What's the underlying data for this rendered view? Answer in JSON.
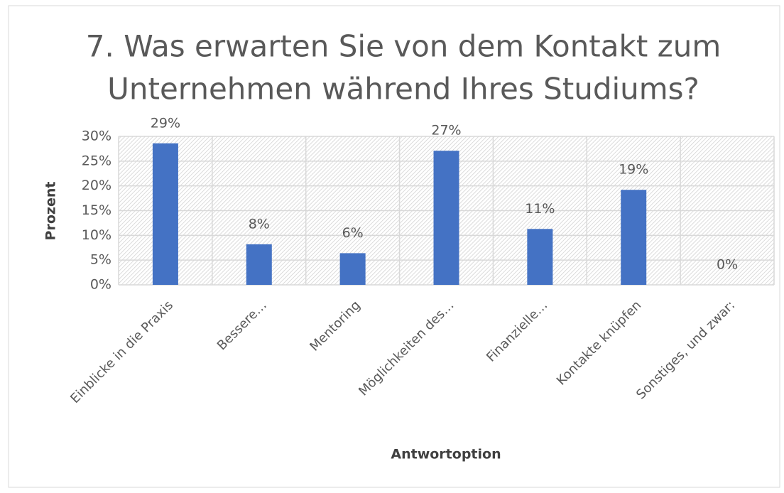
{
  "chart_data": {
    "type": "bar",
    "title": [
      "7. Was erwarten Sie von dem Kontakt zum",
      "Unternehmen während Ihres Studiums?"
    ],
    "x_label": "Antwortoption",
    "y_label": "Prozent",
    "categories": [
      "Einblicke in die Praxis",
      "Bessere…",
      "Mentoring",
      "Möglichkeiten des…",
      "Finanzielle…",
      "Kontakte knüpfen",
      "Sonstiges, und zwar:"
    ],
    "values": [
      28.6,
      8.2,
      6.4,
      27.1,
      11.3,
      19.2,
      0
    ],
    "value_labels": [
      "29%",
      "8%",
      "6%",
      "27%",
      "11%",
      "19%",
      "0%"
    ],
    "color": "#4472c4",
    "ylim": [
      0,
      30
    ],
    "yticks": [
      {
        "value": 0,
        "label": "0%"
      },
      {
        "value": 5,
        "label": "5%"
      },
      {
        "value": 10,
        "label": "10%"
      },
      {
        "value": 15,
        "label": "15%"
      },
      {
        "value": 20,
        "label": "20%"
      },
      {
        "value": 25,
        "label": "25%"
      },
      {
        "value": 30,
        "label": "30%"
      }
    ],
    "grid": true
  }
}
